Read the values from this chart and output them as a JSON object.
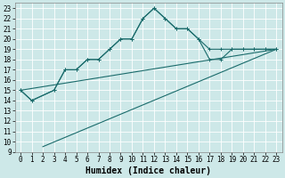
{
  "xlabel": "Humidex (Indice chaleur)",
  "background_color": "#cde8e8",
  "grid_color": "#ffffff",
  "line_color": "#1a6b6b",
  "xlim": [
    -0.5,
    23.5
  ],
  "ylim": [
    9,
    23.5
  ],
  "xticks": [
    0,
    1,
    2,
    3,
    4,
    5,
    6,
    7,
    8,
    9,
    10,
    11,
    12,
    13,
    14,
    15,
    16,
    17,
    18,
    19,
    20,
    21,
    22,
    23
  ],
  "yticks": [
    9,
    10,
    11,
    12,
    13,
    14,
    15,
    16,
    17,
    18,
    19,
    20,
    21,
    22,
    23
  ],
  "series1_x": [
    0,
    1,
    3,
    4,
    5,
    6,
    7,
    8,
    9,
    10,
    11,
    12,
    13,
    14,
    15,
    16,
    17,
    18,
    19,
    20,
    21,
    22,
    23
  ],
  "series1_y": [
    15,
    14,
    15,
    17,
    17,
    18,
    18,
    19,
    20,
    20,
    22,
    23,
    22,
    21,
    21,
    20,
    19,
    19,
    19,
    19,
    19,
    19,
    19
  ],
  "series2_x": [
    0,
    1,
    3,
    4,
    5,
    6,
    7,
    8,
    9,
    10,
    11,
    12,
    13,
    14,
    15,
    16,
    17,
    18,
    19,
    20,
    21,
    22,
    23
  ],
  "series2_y": [
    15,
    14,
    15,
    17,
    17,
    18,
    18,
    19,
    20,
    20,
    22,
    23,
    22,
    21,
    21,
    20,
    18,
    18,
    19,
    19,
    19,
    19,
    19
  ],
  "line1_x": [
    2,
    23
  ],
  "line1_y": [
    9.5,
    19
  ],
  "line2_x": [
    0,
    23
  ],
  "line2_y": [
    15,
    19
  ],
  "tick_fontsize": 5.5,
  "xlabel_fontsize": 7,
  "linewidth": 0.8,
  "markersize": 2.5
}
